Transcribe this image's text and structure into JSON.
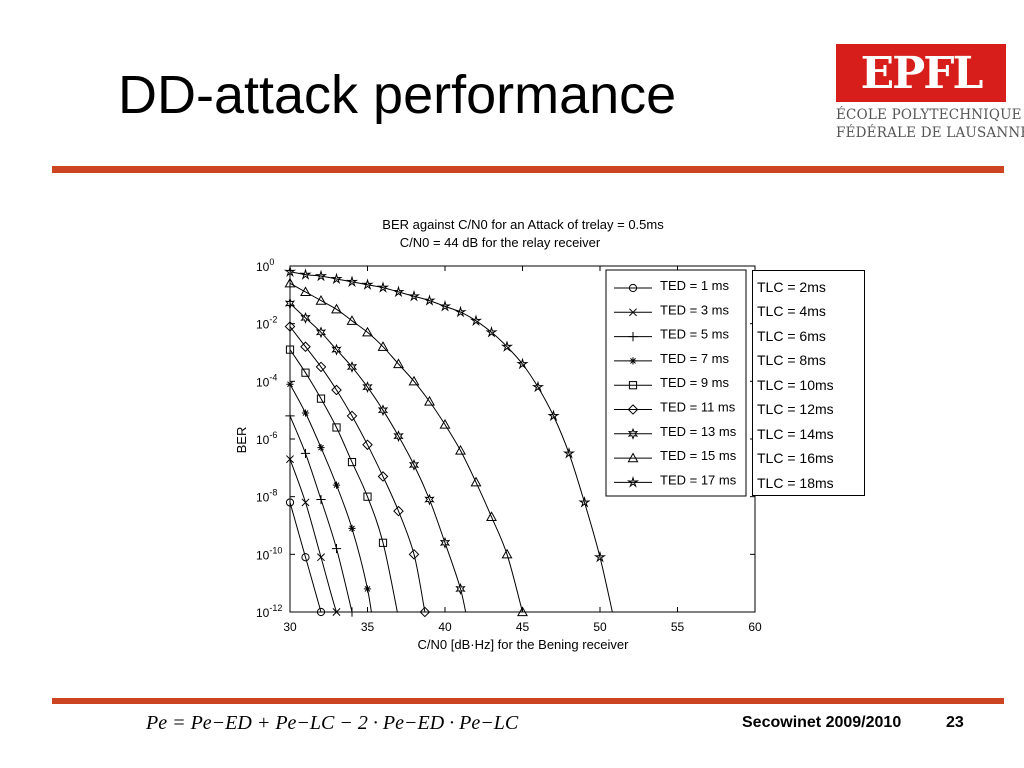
{
  "slide": {
    "title": "DD-attack performance",
    "footer_text": "Secowinet 2009/2010",
    "page_number": "23",
    "formula": "Pe = Pe−ED + Pe−LC − 2 · Pe−ED · Pe−LC",
    "accent_color": "#cc4422"
  },
  "logo": {
    "mark": "EPFL",
    "line1": "ÉCOLE POLYTECHNIQUE",
    "line2": "FÉDÉRALE DE LAUSANNE",
    "color": "#d71e1a"
  },
  "lc_box": {
    "items": [
      "TLC = 2ms",
      "TLC = 4ms",
      "TLC = 6ms",
      "TLC = 8ms",
      "TLC = 10ms",
      "TLC = 12ms",
      "TLC = 14ms",
      "TLC = 16ms",
      "TLC = 18ms"
    ]
  },
  "chart_data": {
    "type": "line",
    "title": "BER against C/N0 for an Attack of trelay = 0.5ms",
    "subtitle": "C/N0 = 44 dB for the relay receiver",
    "xlabel": "C/N0 [dB·Hz] for the Bening receiver",
    "ylabel": "BER",
    "xlim": [
      30,
      60
    ],
    "ylim_log10": [
      -12,
      0
    ],
    "xticks": [
      30,
      35,
      40,
      45,
      50,
      55,
      60
    ],
    "yticks_log10": [
      0,
      -2,
      -4,
      -6,
      -8,
      -10,
      -12
    ],
    "y_scale": "log",
    "grid": false,
    "legend_position": "top-right",
    "series": [
      {
        "name": "TED = 1 ms",
        "marker": "circle",
        "x": [
          30,
          31,
          32
        ],
        "log10y": [
          -8.2,
          -10.1,
          -12
        ]
      },
      {
        "name": "TED = 3 ms",
        "marker": "x",
        "x": [
          30,
          31,
          32,
          33,
          33.8
        ],
        "log10y": [
          -6.7,
          -8.2,
          -10.1,
          -12,
          -13
        ]
      },
      {
        "name": "TED = 5 ms",
        "marker": "plus",
        "x": [
          30,
          31,
          32,
          33,
          34
        ],
        "log10y": [
          -5.2,
          -6.5,
          -8.1,
          -9.8,
          -12
        ]
      },
      {
        "name": "TED = 7 ms",
        "marker": "asterisk",
        "x": [
          30,
          31,
          32,
          33,
          34,
          35,
          35.5
        ],
        "log10y": [
          -4.1,
          -5.1,
          -6.3,
          -7.6,
          -9.1,
          -11.2,
          -13
        ]
      },
      {
        "name": "TED = 9 ms",
        "marker": "square",
        "x": [
          30,
          31,
          32,
          33,
          34,
          35,
          36,
          37
        ],
        "log10y": [
          -2.9,
          -3.7,
          -4.6,
          -5.6,
          -6.8,
          -8.0,
          -9.6,
          -12.2
        ]
      },
      {
        "name": "TED = 11 ms",
        "marker": "diamond",
        "x": [
          30,
          31,
          32,
          33,
          34,
          35,
          36,
          37,
          38,
          38.7
        ],
        "log10y": [
          -2.1,
          -2.8,
          -3.5,
          -4.3,
          -5.2,
          -6.2,
          -7.3,
          -8.5,
          -10.0,
          -12.0
        ]
      },
      {
        "name": "TED = 13 ms",
        "marker": "hexagram",
        "x": [
          30,
          31,
          32,
          33,
          34,
          35,
          36,
          37,
          38,
          39,
          40,
          41,
          41.5
        ],
        "log10y": [
          -1.3,
          -1.8,
          -2.3,
          -2.9,
          -3.5,
          -4.2,
          -5.0,
          -5.9,
          -6.9,
          -8.1,
          -9.6,
          -11.2,
          -12.5
        ]
      },
      {
        "name": "TED = 15 ms",
        "marker": "triangle",
        "x": [
          30,
          31,
          32,
          33,
          34,
          35,
          36,
          37,
          38,
          39,
          40,
          41,
          42,
          43,
          44,
          45
        ],
        "log10y": [
          -0.6,
          -0.9,
          -1.2,
          -1.5,
          -1.9,
          -2.3,
          -2.8,
          -3.4,
          -4.0,
          -4.7,
          -5.5,
          -6.4,
          -7.5,
          -8.7,
          -10.0,
          -12.0
        ]
      },
      {
        "name": "TED = 17 ms",
        "marker": "pentagram",
        "x": [
          30,
          31,
          32,
          33,
          34,
          35,
          36,
          37,
          38,
          39,
          40,
          41,
          42,
          43,
          44,
          45,
          46,
          47,
          48,
          49,
          50,
          51
        ],
        "log10y": [
          -0.2,
          -0.3,
          -0.35,
          -0.45,
          -0.55,
          -0.65,
          -0.75,
          -0.9,
          -1.05,
          -1.2,
          -1.4,
          -1.6,
          -1.9,
          -2.3,
          -2.8,
          -3.4,
          -4.2,
          -5.2,
          -6.5,
          -8.2,
          -10.1,
          -12.5
        ]
      }
    ]
  }
}
